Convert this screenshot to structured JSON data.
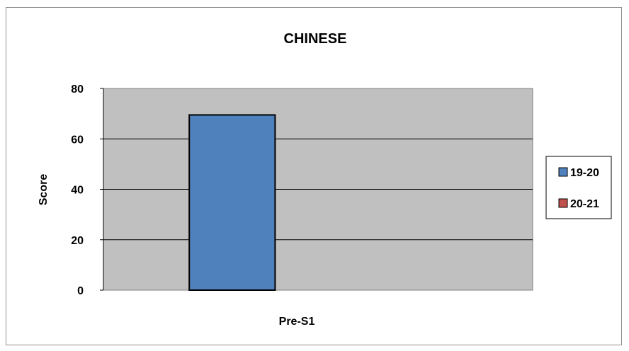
{
  "chart_data": {
    "type": "bar",
    "title": "CHINESE",
    "ylabel": "Score",
    "xlabel": "",
    "categories": [
      "Pre-S1"
    ],
    "series": [
      {
        "name": "19-20",
        "values": [
          69.5
        ],
        "color": "#4f81bd"
      },
      {
        "name": "20-21",
        "values": [
          null
        ],
        "color": "#c0504d"
      }
    ],
    "ylim": [
      0,
      80
    ],
    "yticks": [
      0,
      20,
      40,
      60,
      80
    ],
    "grid": true,
    "legend_position": "right",
    "plot_background": "#c0c0c0"
  }
}
